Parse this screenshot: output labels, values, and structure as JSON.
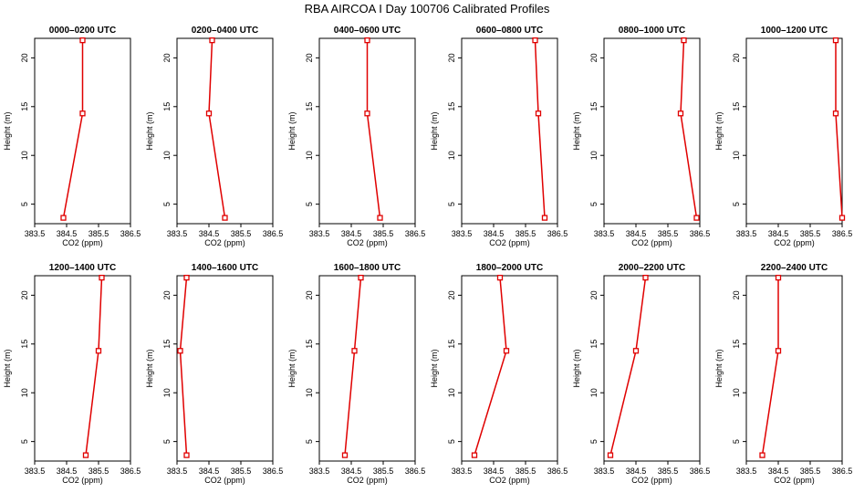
{
  "title": "RBA AIRCOA I  Day 100706  Calibrated Profiles",
  "colors": {
    "series": "#e00000",
    "axis": "#000000",
    "background": "#ffffff"
  },
  "chart_data": [
    {
      "type": "line",
      "title": "0000–0200 UTC",
      "xlabel": "CO2 (ppm)",
      "ylabel": "Height (m)",
      "xlim": [
        383.5,
        386.5
      ],
      "ylim": [
        3,
        22
      ],
      "xticks": [
        "383.5",
        "384.5",
        "385.5",
        "386.5"
      ],
      "yticks": [
        "5",
        "10",
        "15",
        "20"
      ],
      "x": [
        384.4,
        385.0,
        385.0
      ],
      "y": [
        3.6,
        14.3,
        21.8
      ]
    },
    {
      "type": "line",
      "title": "0200–0400 UTC",
      "xlabel": "CO2 (ppm)",
      "ylabel": "Height (m)",
      "xlim": [
        383.5,
        386.5
      ],
      "ylim": [
        3,
        22
      ],
      "xticks": [
        "383.5",
        "384.5",
        "385.5",
        "386.5"
      ],
      "yticks": [
        "5",
        "10",
        "15",
        "20"
      ],
      "x": [
        385.0,
        384.5,
        384.6
      ],
      "y": [
        3.6,
        14.3,
        21.8
      ]
    },
    {
      "type": "line",
      "title": "0400–0600 UTC",
      "xlabel": "CO2 (ppm)",
      "ylabel": "Height (m)",
      "xlim": [
        383.5,
        386.5
      ],
      "ylim": [
        3,
        22
      ],
      "xticks": [
        "383.5",
        "384.5",
        "385.5",
        "386.5"
      ],
      "yticks": [
        "5",
        "10",
        "15",
        "20"
      ],
      "x": [
        385.4,
        385.0,
        385.0
      ],
      "y": [
        3.6,
        14.3,
        21.8
      ]
    },
    {
      "type": "line",
      "title": "0600–0800 UTC",
      "xlabel": "CO2 (ppm)",
      "ylabel": "Height (m)",
      "xlim": [
        383.5,
        386.5
      ],
      "ylim": [
        3,
        22
      ],
      "xticks": [
        "383.5",
        "384.5",
        "385.5",
        "386.5"
      ],
      "yticks": [
        "5",
        "10",
        "15",
        "20"
      ],
      "x": [
        386.1,
        385.9,
        385.8
      ],
      "y": [
        3.6,
        14.3,
        21.8
      ]
    },
    {
      "type": "line",
      "title": "0800–1000 UTC",
      "xlabel": "CO2 (ppm)",
      "ylabel": "Height (m)",
      "xlim": [
        383.5,
        386.5
      ],
      "ylim": [
        3,
        22
      ],
      "xticks": [
        "383.5",
        "384.5",
        "385.5",
        "386.5"
      ],
      "yticks": [
        "5",
        "10",
        "15",
        "20"
      ],
      "x": [
        386.4,
        385.9,
        386.0
      ],
      "y": [
        3.6,
        14.3,
        21.8
      ]
    },
    {
      "type": "line",
      "title": "1000–1200 UTC",
      "xlabel": "CO2 (ppm)",
      "ylabel": "Height (m)",
      "xlim": [
        383.5,
        386.5
      ],
      "ylim": [
        3,
        22
      ],
      "xticks": [
        "383.5",
        "384.5",
        "385.5",
        "386.5"
      ],
      "yticks": [
        "5",
        "10",
        "15",
        "20"
      ],
      "x": [
        386.5,
        386.3,
        386.3
      ],
      "y": [
        3.6,
        14.3,
        21.8
      ]
    },
    {
      "type": "line",
      "title": "1200–1400 UTC",
      "xlabel": "CO2 (ppm)",
      "ylabel": "Height (m)",
      "xlim": [
        383.5,
        386.5
      ],
      "ylim": [
        3,
        22
      ],
      "xticks": [
        "383.5",
        "384.5",
        "385.5",
        "386.5"
      ],
      "yticks": [
        "5",
        "10",
        "15",
        "20"
      ],
      "x": [
        385.1,
        385.5,
        385.6
      ],
      "y": [
        3.6,
        14.3,
        21.8
      ]
    },
    {
      "type": "line",
      "title": "1400–1600 UTC",
      "xlabel": "CO2 (ppm)",
      "ylabel": "Height (m)",
      "xlim": [
        383.5,
        386.5
      ],
      "ylim": [
        3,
        22
      ],
      "xticks": [
        "383.5",
        "384.5",
        "385.5",
        "386.5"
      ],
      "yticks": [
        "5",
        "10",
        "15",
        "20"
      ],
      "x": [
        383.8,
        383.6,
        383.8
      ],
      "y": [
        3.6,
        14.3,
        21.8
      ]
    },
    {
      "type": "line",
      "title": "1600–1800 UTC",
      "xlabel": "CO2 (ppm)",
      "ylabel": "Height (m)",
      "xlim": [
        383.5,
        386.5
      ],
      "ylim": [
        3,
        22
      ],
      "xticks": [
        "383.5",
        "384.5",
        "385.5",
        "386.5"
      ],
      "yticks": [
        "5",
        "10",
        "15",
        "20"
      ],
      "x": [
        384.3,
        384.6,
        384.8
      ],
      "y": [
        3.6,
        14.3,
        21.8
      ]
    },
    {
      "type": "line",
      "title": "1800–2000 UTC",
      "xlabel": "CO2 (ppm)",
      "ylabel": "Height (m)",
      "xlim": [
        383.5,
        386.5
      ],
      "ylim": [
        3,
        22
      ],
      "xticks": [
        "383.5",
        "384.5",
        "385.5",
        "386.5"
      ],
      "yticks": [
        "5",
        "10",
        "15",
        "20"
      ],
      "x": [
        383.9,
        384.9,
        384.7
      ],
      "y": [
        3.6,
        14.3,
        21.8
      ]
    },
    {
      "type": "line",
      "title": "2000–2200 UTC",
      "xlabel": "CO2 (ppm)",
      "ylabel": "Height (m)",
      "xlim": [
        383.5,
        386.5
      ],
      "ylim": [
        3,
        22
      ],
      "xticks": [
        "383.5",
        "384.5",
        "385.5",
        "386.5"
      ],
      "yticks": [
        "5",
        "10",
        "15",
        "20"
      ],
      "x": [
        383.7,
        384.5,
        384.8
      ],
      "y": [
        3.6,
        14.3,
        21.8
      ]
    },
    {
      "type": "line",
      "title": "2200–2400 UTC",
      "xlabel": "CO2 (ppm)",
      "ylabel": "Height (m)",
      "xlim": [
        383.5,
        386.5
      ],
      "ylim": [
        3,
        22
      ],
      "xticks": [
        "383.5",
        "384.5",
        "385.5",
        "386.5"
      ],
      "yticks": [
        "5",
        "10",
        "15",
        "20"
      ],
      "x": [
        384.0,
        384.5,
        384.5
      ],
      "y": [
        3.6,
        14.3,
        21.8
      ]
    }
  ]
}
